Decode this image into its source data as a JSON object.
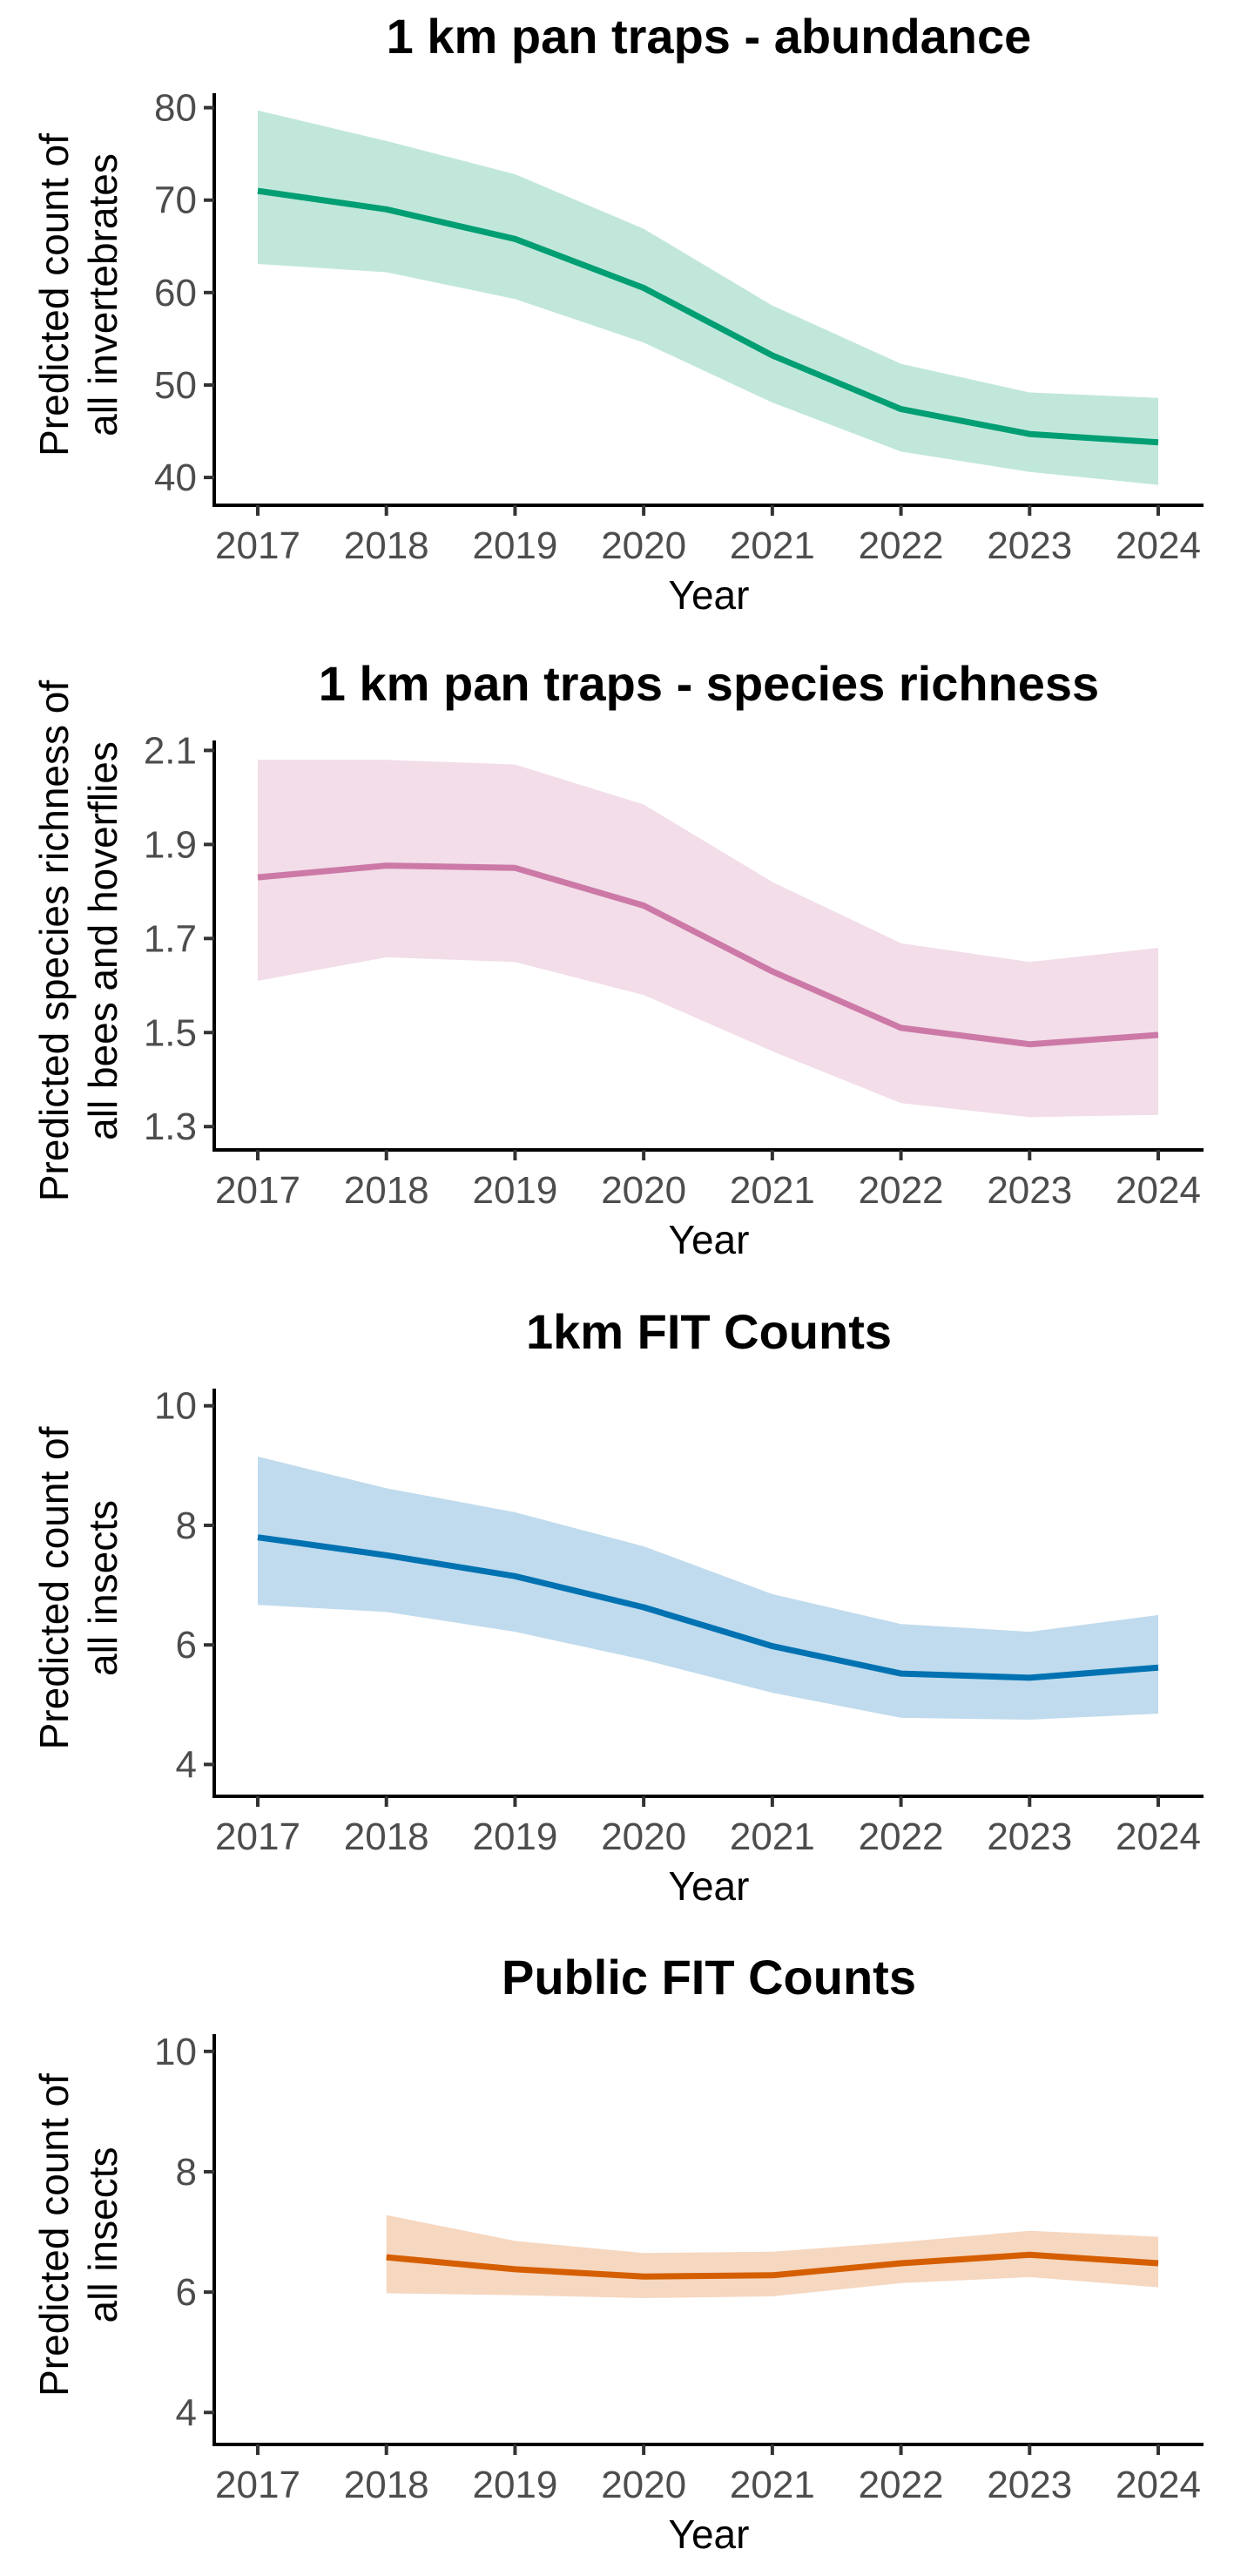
{
  "chart_data": [
    {
      "type": "line",
      "title": "1 km pan traps - abundance",
      "xlabel": "Year",
      "ylabel": [
        "Predicted count of",
        "all invertebrates"
      ],
      "xlim": [
        2017,
        2024
      ],
      "ylim": [
        38.5,
        81
      ],
      "yticks": [
        40,
        50,
        60,
        70,
        80
      ],
      "xticks": [
        2017,
        2018,
        2019,
        2020,
        2021,
        2022,
        2023,
        2024
      ],
      "color": "#009E73",
      "ribbon_color": "#C1E7DB",
      "grid": false,
      "legend": false,
      "series": [
        {
          "x": [
            2017,
            2018,
            2019,
            2020,
            2021,
            2022,
            2023,
            2024
          ],
          "values": [
            71.0,
            69.0,
            65.8,
            60.5,
            53.2,
            47.4,
            44.7,
            43.8
          ],
          "lower": [
            63.1,
            62.2,
            59.3,
            54.6,
            48.1,
            42.8,
            40.6,
            39.2
          ],
          "upper": [
            79.7,
            76.4,
            72.8,
            66.9,
            58.6,
            52.3,
            49.2,
            48.6
          ]
        }
      ]
    },
    {
      "type": "line",
      "title": "1 km pan traps - species richness",
      "xlabel": "Year",
      "ylabel": [
        "Predicted species richness of",
        "all bees and hoverflies"
      ],
      "xlim": [
        2017,
        2024
      ],
      "ylim": [
        1.28,
        2.11
      ],
      "yticks": [
        1.3,
        1.5,
        1.7,
        1.9,
        2.1
      ],
      "yticklabels": [
        "1.3",
        "1.5",
        "1.7",
        "1.9",
        "2.1"
      ],
      "xticks": [
        2017,
        2018,
        2019,
        2020,
        2021,
        2022,
        2023,
        2024
      ],
      "color": "#CC79A7",
      "ribbon_color": "#F2DDE8",
      "grid": false,
      "legend": false,
      "series": [
        {
          "x": [
            2017,
            2018,
            2019,
            2020,
            2021,
            2022,
            2023,
            2024
          ],
          "values": [
            1.83,
            1.855,
            1.85,
            1.77,
            1.63,
            1.51,
            1.475,
            1.495
          ],
          "lower": [
            1.61,
            1.66,
            1.65,
            1.58,
            1.46,
            1.35,
            1.32,
            1.325
          ],
          "upper": [
            2.08,
            2.08,
            2.07,
            1.985,
            1.82,
            1.69,
            1.65,
            1.68
          ]
        }
      ]
    },
    {
      "type": "line",
      "title": "1km FIT Counts",
      "xlabel": "Year",
      "ylabel": [
        "Predicted count of",
        "all insects"
      ],
      "xlim": [
        2017,
        2024
      ],
      "ylim": [
        3.7,
        10.2
      ],
      "yticks": [
        4,
        6,
        8,
        10
      ],
      "xticks": [
        2017,
        2018,
        2019,
        2020,
        2021,
        2022,
        2023,
        2024
      ],
      "color": "#0072B2",
      "ribbon_color": "#C0DBED",
      "grid": false,
      "legend": false,
      "series": [
        {
          "x": [
            2017,
            2018,
            2019,
            2020,
            2021,
            2022,
            2023,
            2024
          ],
          "values": [
            7.8,
            7.5,
            7.15,
            6.63,
            5.98,
            5.52,
            5.45,
            5.62
          ],
          "lower": [
            6.67,
            6.55,
            6.22,
            5.75,
            5.2,
            4.78,
            4.75,
            4.85
          ],
          "upper": [
            9.15,
            8.62,
            8.22,
            7.65,
            6.85,
            6.35,
            6.22,
            6.5
          ]
        }
      ]
    },
    {
      "type": "line",
      "title": "Public FIT Counts",
      "xlabel": "Year",
      "ylabel": [
        "Predicted count of",
        "all insects"
      ],
      "xlim": [
        2017,
        2024
      ],
      "ylim": [
        3.7,
        10.2
      ],
      "yticks": [
        4,
        6,
        8,
        10
      ],
      "xticks": [
        2017,
        2018,
        2019,
        2020,
        2021,
        2022,
        2023,
        2024
      ],
      "color": "#D55E00",
      "ribbon_color": "#F6D7C0",
      "grid": false,
      "legend": false,
      "series": [
        {
          "x": [
            2018,
            2019,
            2020,
            2021,
            2022,
            2023,
            2024
          ],
          "values": [
            6.58,
            6.38,
            6.26,
            6.28,
            6.48,
            6.62,
            6.48
          ],
          "lower": [
            5.98,
            5.95,
            5.9,
            5.93,
            6.15,
            6.25,
            6.08
          ],
          "upper": [
            7.28,
            6.85,
            6.65,
            6.67,
            6.83,
            7.02,
            6.92
          ]
        }
      ]
    }
  ]
}
